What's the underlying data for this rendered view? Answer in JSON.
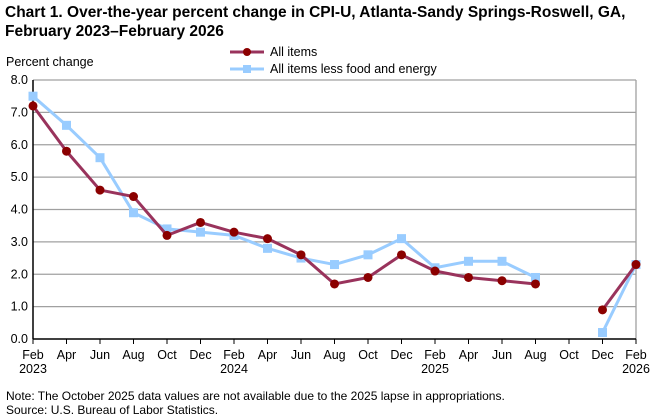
{
  "chart_data": {
    "type": "line",
    "title": "Chart 1. Over-the-year percent change in CPI-U, Atlanta-Sandy Springs-Roswell, GA, February 2023–February 2026",
    "ylabel": "Percent change",
    "xlabel": "",
    "ylim": [
      0,
      8
    ],
    "yticks": [
      "0.0",
      "1.0",
      "2.0",
      "3.0",
      "4.0",
      "5.0",
      "6.0",
      "7.0",
      "8.0"
    ],
    "grid": true,
    "legend_position": "top-center",
    "categories": [
      "Feb",
      "Apr",
      "Jun",
      "Aug",
      "Oct",
      "Dec",
      "Feb",
      "Apr",
      "Jun",
      "Aug",
      "Oct",
      "Dec",
      "Feb",
      "Apr",
      "Jun",
      "Aug",
      "Oct",
      "Dec",
      "Feb"
    ],
    "year_labels": {
      "0": "2023",
      "6": "2024",
      "12": "2025",
      "18": "2026"
    },
    "series": [
      {
        "name": "All items",
        "color": "#8B0000",
        "line_color": "#99335C",
        "marker": "circle",
        "values": [
          7.2,
          5.8,
          4.6,
          4.4,
          3.2,
          3.6,
          3.3,
          3.1,
          2.6,
          1.7,
          1.9,
          2.6,
          2.1,
          1.9,
          1.8,
          1.7,
          null,
          0.9,
          2.3
        ]
      },
      {
        "name": "All items less food and energy",
        "color": "#99CCFF",
        "line_color": "#99CCFF",
        "marker": "square",
        "values": [
          7.5,
          6.6,
          5.6,
          3.9,
          3.4,
          3.3,
          3.2,
          2.8,
          2.5,
          2.3,
          2.6,
          3.1,
          2.2,
          2.4,
          2.4,
          1.9,
          null,
          0.2,
          2.3
        ]
      }
    ]
  },
  "notes": {
    "note": "Note: The October 2025 data values are not available due to the 2025 lapse in appropriations.",
    "source": "Source: U.S. Bureau of Labor Statistics."
  }
}
